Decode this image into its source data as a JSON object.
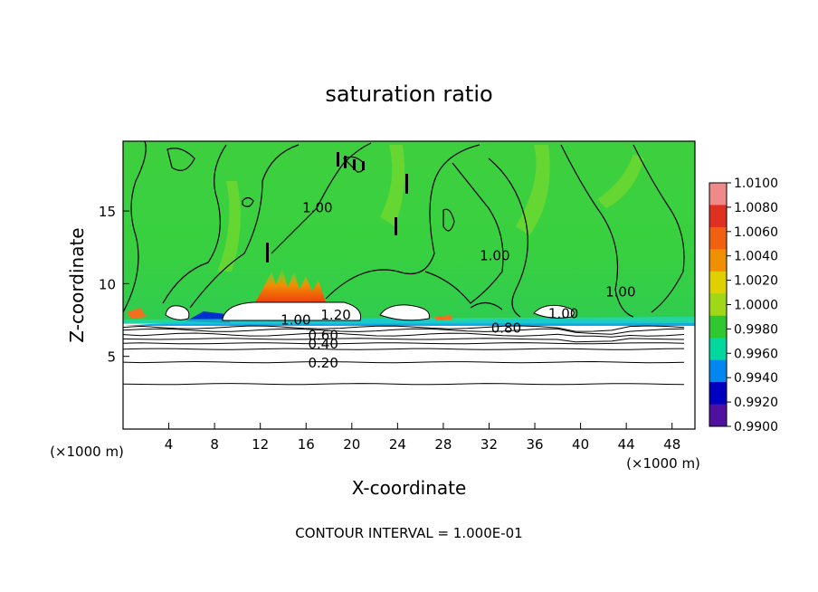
{
  "chart_data": {
    "type": "heatmap",
    "title": "saturation ratio",
    "xlabel": "X-coordinate",
    "ylabel": "Z-coordinate",
    "x_unit_label": "(×1000 m)",
    "x_ticks": [
      4,
      8,
      12,
      16,
      20,
      24,
      28,
      32,
      36,
      40,
      44,
      48
    ],
    "y_ticks": [
      5,
      10,
      15
    ],
    "xlim": [
      0,
      50
    ],
    "ylim": [
      0,
      19.8
    ],
    "footer": "CONTOUR INTERVAL = 1.000E-01",
    "colorbar": {
      "labels": [
        "1.0100",
        "1.0080",
        "1.0060",
        "1.0040",
        "1.0020",
        "1.0000",
        "0.9980",
        "0.9960",
        "0.9940",
        "0.9920",
        "0.9900"
      ],
      "colors": [
        "#f08a8a",
        "#e03020",
        "#f06010",
        "#f09000",
        "#e0d000",
        "#a0d818",
        "#30c830",
        "#00d8a0",
        "#0088f0",
        "#0000c0",
        "#5010a0"
      ]
    },
    "contour_labels": [
      {
        "text": "1.00",
        "x": 17,
        "y": 15.3
      },
      {
        "text": "1.00",
        "x": 32.5,
        "y": 12.0
      },
      {
        "text": "1.00",
        "x": 43.5,
        "y": 9.5
      },
      {
        "text": "1.20",
        "x": 18.6,
        "y": 7.9
      },
      {
        "text": "1.00",
        "x": 15.1,
        "y": 7.55
      },
      {
        "text": "1.00",
        "x": 38.5,
        "y": 8.0
      },
      {
        "text": "0.80",
        "x": 33.5,
        "y": 7.0
      },
      {
        "text": "0.60",
        "x": 17.5,
        "y": 6.5
      },
      {
        "text": "0.40",
        "x": 17.5,
        "y": 5.9
      },
      {
        "text": "0.20",
        "x": 17.5,
        "y": 4.6
      }
    ],
    "flat_contours_z": [
      3.1,
      4.6,
      5.5,
      5.9,
      6.2,
      6.5,
      6.8,
      7.0
    ]
  }
}
